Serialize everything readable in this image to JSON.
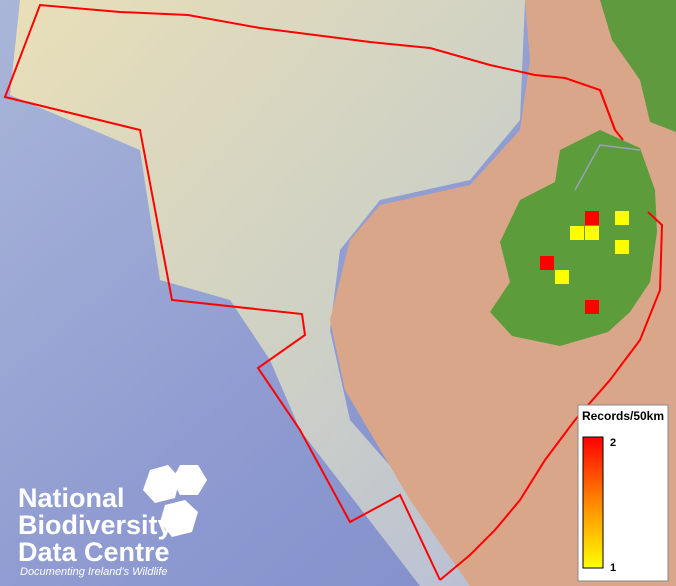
{
  "legend": {
    "title": "Records/50km",
    "max": 2,
    "min": 1
  },
  "records": [
    2,
    1,
    1,
    1,
    1,
    2,
    1,
    2
  ],
  "logo": {
    "line1": "National",
    "line2": "Biodiversity",
    "line3": "Data Centre",
    "tagline": "Documenting Ireland's Wildlife"
  }
}
